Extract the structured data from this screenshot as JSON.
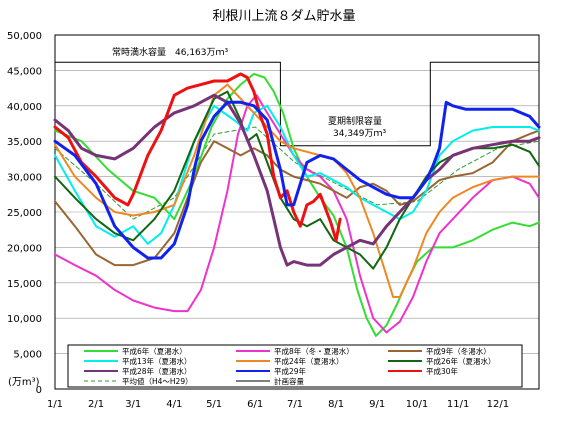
{
  "chart_data": {
    "type": "line",
    "title": "利根川上流８ダム貯水量",
    "ylabel": "(万m³)",
    "xlabel": "",
    "xlim": [
      0,
      365
    ],
    "ylim": [
      0,
      50000
    ],
    "y_ticks": [
      0,
      5000,
      10000,
      15000,
      20000,
      25000,
      30000,
      35000,
      40000,
      45000,
      50000
    ],
    "y_tick_labels": [
      "0",
      "5,000",
      "10,000",
      "15,000",
      "20,000",
      "25,000",
      "30,000",
      "35,000",
      "40,000",
      "45,000",
      "50,000"
    ],
    "x_ticks": [
      0,
      31,
      59,
      90,
      120,
      151,
      181,
      212,
      243,
      273,
      304,
      334
    ],
    "x_tick_labels": [
      "1/1",
      "2/1",
      "3/1",
      "4/1",
      "5/1",
      "6/1",
      "7/1",
      "8/1",
      "9/1",
      "10/1",
      "11/1",
      "12/1"
    ],
    "grid": true,
    "annotations": [
      {
        "text": "常時満水容量　46,163万ｍ³"
      },
      {
        "text": "夏期制限容量"
      },
      {
        "text": "34,349万ｍ³"
      }
    ],
    "series": [
      {
        "name": "平成6年（夏渇水）",
        "color": "#33dd33",
        "width": 2,
        "x": [
          0,
          20,
          40,
          59,
          75,
          90,
          105,
          118,
          130,
          140,
          150,
          158,
          165,
          172,
          180,
          190,
          200,
          210,
          220,
          228,
          235,
          242,
          250,
          258,
          265,
          273,
          285,
          300,
          315,
          330,
          345,
          358,
          365
        ],
        "y": [
          36500,
          35000,
          31000,
          28000,
          27000,
          24000,
          30000,
          37000,
          41000,
          43000,
          44500,
          44000,
          42000,
          39000,
          34000,
          30000,
          27000,
          24500,
          20000,
          14000,
          10000,
          7500,
          9000,
          12000,
          15000,
          18000,
          20000,
          20000,
          21000,
          22500,
          23500,
          23000,
          23500
        ]
      },
      {
        "name": "平成8年（冬・夏渇水）",
        "color": "#ee33cc",
        "width": 2,
        "x": [
          0,
          15,
          31,
          45,
          59,
          75,
          90,
          100,
          110,
          120,
          130,
          138,
          145,
          152,
          160,
          170,
          180,
          190,
          200,
          210,
          220,
          230,
          240,
          250,
          260,
          270,
          280,
          290,
          300,
          315,
          330,
          345,
          358,
          365
        ],
        "y": [
          19000,
          17500,
          16000,
          14000,
          12500,
          11500,
          11000,
          11000,
          14000,
          20000,
          28000,
          36000,
          40000,
          41500,
          39000,
          36000,
          33000,
          31000,
          30000,
          28000,
          24000,
          16000,
          10000,
          8000,
          9500,
          13000,
          18000,
          22000,
          24000,
          27000,
          29500,
          30000,
          29000,
          27000
        ]
      },
      {
        "name": "平成9年（冬渇水）",
        "color": "#996633",
        "width": 2,
        "x": [
          0,
          15,
          31,
          45,
          59,
          75,
          90,
          100,
          110,
          120,
          130,
          140,
          150,
          160,
          170,
          180,
          190,
          200,
          210,
          220,
          230,
          240,
          250,
          260,
          270,
          280,
          290,
          300,
          315,
          330,
          345,
          358,
          365
        ],
        "y": [
          26500,
          23000,
          19000,
          17500,
          17500,
          18500,
          22000,
          27000,
          32000,
          35000,
          34000,
          33000,
          34000,
          33000,
          31000,
          30000,
          29500,
          29000,
          28000,
          27000,
          28500,
          29000,
          28000,
          26000,
          26500,
          28000,
          29500,
          30000,
          30500,
          32000,
          35000,
          36000,
          36500
        ]
      },
      {
        "name": "平成13年（夏渇水）",
        "color": "#00eeee",
        "width": 2,
        "x": [
          0,
          15,
          31,
          45,
          59,
          70,
          80,
          90,
          105,
          120,
          135,
          145,
          150,
          160,
          170,
          180,
          190,
          200,
          210,
          220,
          230,
          240,
          250,
          260,
          270,
          280,
          290,
          300,
          315,
          330,
          345,
          358,
          365
        ],
        "y": [
          33000,
          28000,
          23000,
          21500,
          23000,
          20500,
          22000,
          26000,
          35000,
          40000,
          38000,
          36500,
          39000,
          40000,
          37000,
          33000,
          30000,
          30500,
          29500,
          28500,
          27000,
          26000,
          25000,
          24000,
          25000,
          28000,
          33000,
          35000,
          36500,
          37000,
          37000,
          37000,
          36500
        ]
      },
      {
        "name": "平成24年（夏渇水）",
        "color": "#ee8822",
        "width": 2,
        "x": [
          0,
          15,
          31,
          45,
          59,
          75,
          90,
          105,
          120,
          130,
          140,
          150,
          160,
          170,
          180,
          190,
          200,
          210,
          220,
          230,
          240,
          250,
          255,
          260,
          270,
          280,
          290,
          300,
          315,
          330,
          345,
          358,
          365
        ],
        "y": [
          34500,
          30000,
          27000,
          25000,
          24500,
          25000,
          26000,
          33000,
          41500,
          43000,
          41000,
          39000,
          37000,
          35000,
          34000,
          33500,
          33000,
          32500,
          30500,
          27000,
          22000,
          16000,
          13000,
          13000,
          17000,
          22000,
          25000,
          27000,
          28500,
          29500,
          30000,
          30000,
          30000
        ]
      },
      {
        "name": "平成26年（夏渇水）",
        "color": "#116611",
        "width": 2,
        "x": [
          0,
          15,
          31,
          45,
          59,
          75,
          90,
          105,
          120,
          130,
          140,
          145,
          152,
          160,
          170,
          180,
          190,
          200,
          210,
          220,
          230,
          240,
          250,
          260,
          270,
          280,
          290,
          300,
          315,
          330,
          345,
          358,
          365
        ],
        "y": [
          30000,
          27000,
          24000,
          22000,
          21000,
          24000,
          28000,
          35000,
          41000,
          42000,
          38000,
          35000,
          36000,
          32000,
          27000,
          24000,
          23000,
          24000,
          21000,
          20000,
          19000,
          17000,
          20000,
          24000,
          27000,
          30000,
          32000,
          33000,
          34000,
          34000,
          34500,
          33500,
          31500
        ]
      },
      {
        "name": "平成28年（夏渇水）",
        "color": "#773377",
        "width": 3,
        "x": [
          0,
          10,
          20,
          31,
          45,
          59,
          75,
          90,
          105,
          120,
          130,
          140,
          150,
          160,
          170,
          175,
          180,
          190,
          200,
          210,
          220,
          230,
          240,
          250,
          260,
          270,
          280,
          290,
          300,
          315,
          330,
          345,
          358,
          365
        ],
        "y": [
          38000,
          36500,
          34000,
          33000,
          32500,
          34000,
          37000,
          39000,
          40000,
          41500,
          40500,
          37500,
          33000,
          28000,
          20000,
          17500,
          18000,
          17500,
          17500,
          19000,
          20000,
          21000,
          20500,
          23000,
          25000,
          27000,
          29500,
          31000,
          33000,
          34000,
          34500,
          35000,
          35000,
          35500
        ]
      },
      {
        "name": "平成29年",
        "color": "#1122ee",
        "width": 3,
        "x": [
          0,
          15,
          31,
          45,
          59,
          70,
          80,
          90,
          100,
          105,
          110,
          120,
          130,
          140,
          150,
          160,
          170,
          175,
          180,
          190,
          200,
          210,
          220,
          230,
          240,
          250,
          260,
          270,
          280,
          285,
          290,
          295,
          300,
          310,
          320,
          330,
          345,
          358,
          365
        ],
        "y": [
          35000,
          33000,
          29000,
          23000,
          20000,
          18500,
          18500,
          20500,
          26000,
          31000,
          35000,
          38500,
          40500,
          40500,
          40000,
          38000,
          31000,
          26000,
          26000,
          32000,
          33000,
          32500,
          31000,
          29500,
          28500,
          27500,
          27000,
          27000,
          29500,
          31500,
          34000,
          40500,
          40000,
          39500,
          39500,
          39500,
          39500,
          38500,
          37000
        ]
      },
      {
        "name": "平成30年",
        "color": "#ee1111",
        "width": 3,
        "x": [
          0,
          10,
          20,
          31,
          45,
          55,
          59,
          70,
          80,
          90,
          100,
          110,
          120,
          130,
          140,
          145,
          150,
          155,
          160,
          165,
          170,
          175,
          180,
          185,
          190,
          195,
          200,
          205,
          208,
          212,
          215
        ],
        "y": [
          37000,
          35500,
          32000,
          30000,
          27000,
          26000,
          27500,
          33000,
          36500,
          41500,
          42500,
          43000,
          43500,
          43500,
          44500,
          44000,
          42000,
          38500,
          36000,
          30000,
          27000,
          28000,
          25000,
          23000,
          26000,
          26500,
          27500,
          25000,
          23500,
          21000,
          24000
        ]
      },
      {
        "name": "平均値（H4～H29）",
        "color": "#339933",
        "width": 1,
        "dash": "4 3",
        "x": [
          0,
          31,
          59,
          90,
          120,
          151,
          181,
          212,
          243,
          273,
          304,
          334,
          365
        ],
        "y": [
          34000,
          29000,
          24000,
          27000,
          36000,
          37000,
          32000,
          29000,
          26000,
          26500,
          31000,
          34000,
          35000
        ]
      },
      {
        "name": "計画容量",
        "color": "#000000",
        "width": 1,
        "x": [
          0,
          170,
          170,
          182,
          182,
          263,
          263,
          283,
          283,
          365
        ],
        "y": [
          46163,
          46163,
          34349,
          34349,
          34349,
          34349,
          34349,
          34349,
          46163,
          46163
        ]
      }
    ]
  }
}
